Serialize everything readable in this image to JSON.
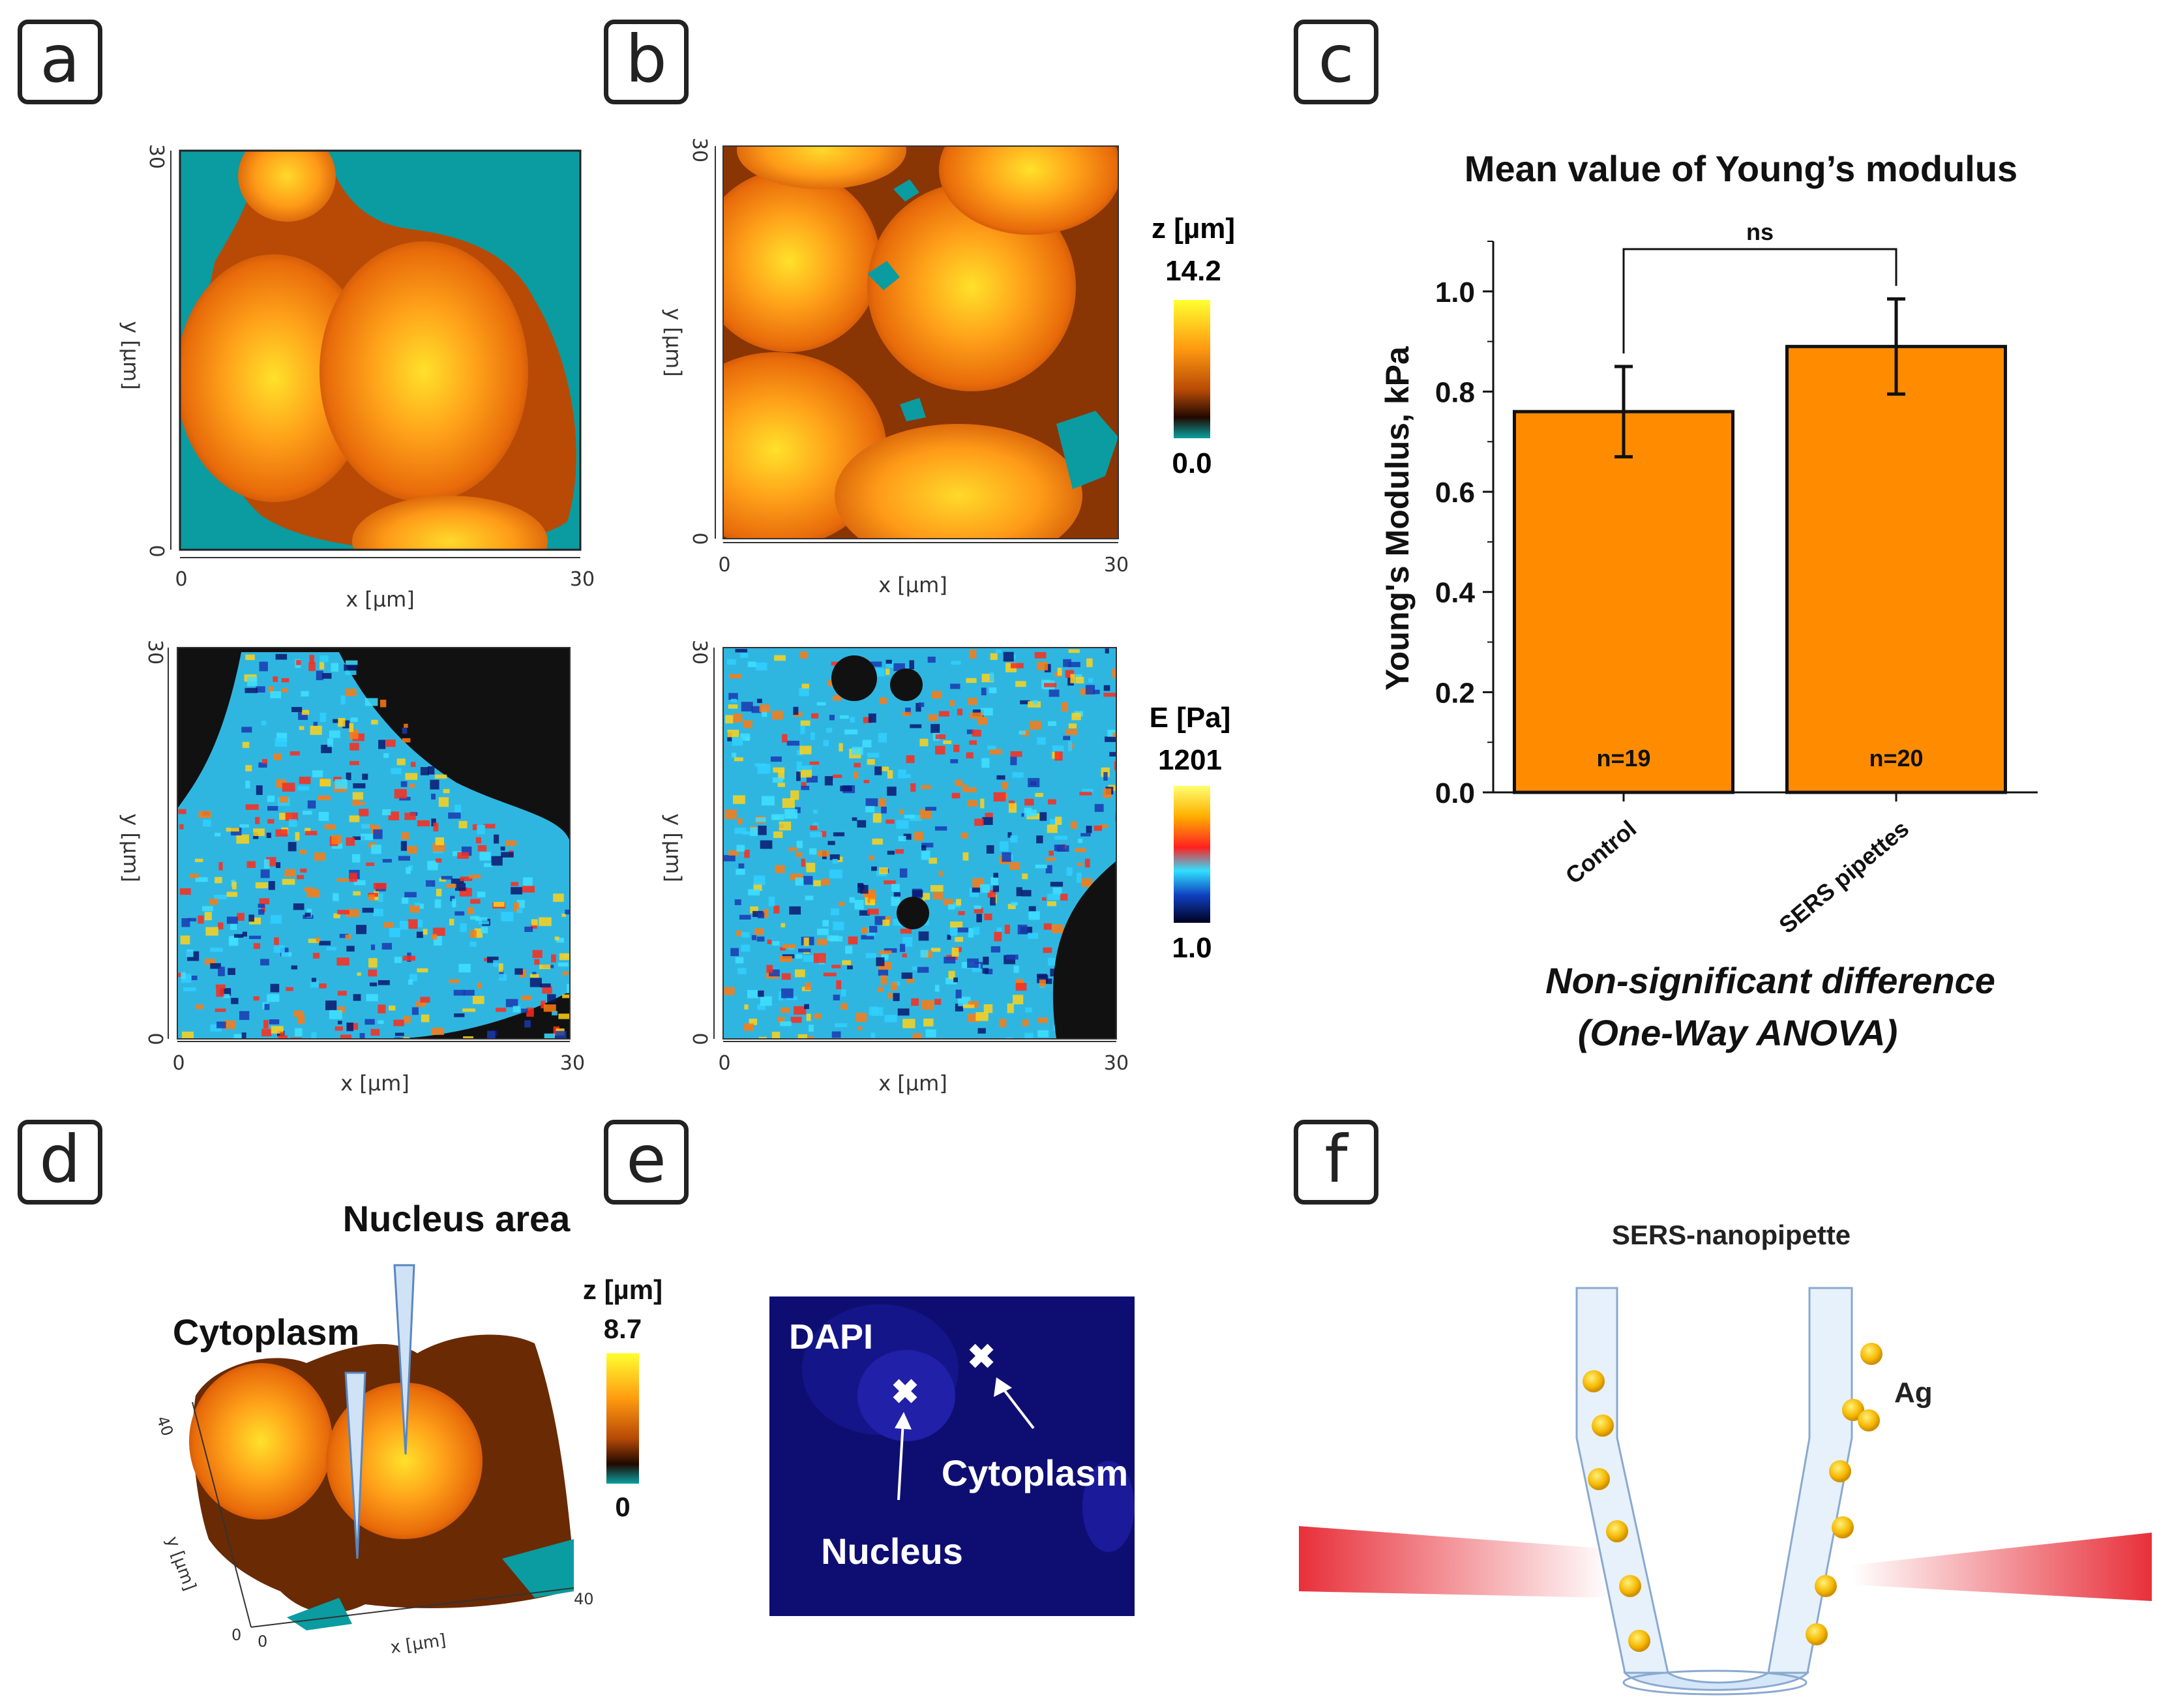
{
  "panels": {
    "a": "a",
    "b": "b",
    "c": "c",
    "d": "d",
    "e": "e",
    "f": "f"
  },
  "colors": {
    "cyan": "#0a9ca0",
    "orange": "#ff8c00",
    "dapi": "#10107e",
    "pipette": "#e6f1fb",
    "gold": "#f5b800",
    "laser": "#e8303a"
  },
  "afm": {
    "xlabel": "x [µm]",
    "ylabel": "y [µm]",
    "tick_min": "0",
    "tick_max": "30",
    "z_colorbar": {
      "title": "z [µm]",
      "max": "14.2",
      "min": "0.0"
    },
    "e_colorbar": {
      "title": "E [Pa]",
      "max": "1201",
      "min": "1.0"
    }
  },
  "chart_data": {
    "type": "bar",
    "title": "Mean value of Young’s modulus",
    "ylabel": "Young's Modulus, kPa",
    "xlabel": "",
    "categories": [
      "Control",
      "SERS pipettes"
    ],
    "values": [
      0.76,
      0.89
    ],
    "errors": [
      0.09,
      0.095
    ],
    "n_labels": [
      "n=19",
      "n=20"
    ],
    "ylim": [
      0,
      1.1
    ],
    "yticks": [
      "0.0",
      "0.2",
      "0.4",
      "0.6",
      "0.8",
      "1.0"
    ],
    "significance": "ns",
    "note_line1": "Non-significant difference",
    "note_line2": "(One-Way ANOVA)",
    "bar_color": "#ff8c00"
  },
  "panel_d": {
    "nucleus": "Nucleus area",
    "cytoplasm": "Cytoplasm",
    "ctitle": "z [µm]",
    "cmax": "8.7",
    "cmin": "0",
    "ylabel": "y [µm]",
    "xlabel": "x [µm]",
    "tick0": "0",
    "tick40": "40"
  },
  "panel_e": {
    "stain": "DAPI",
    "cytoplasm": "Cytoplasm",
    "nucleus": "Nucleus"
  },
  "panel_f": {
    "title": "SERS-nanopipette",
    "ag": "Ag"
  }
}
